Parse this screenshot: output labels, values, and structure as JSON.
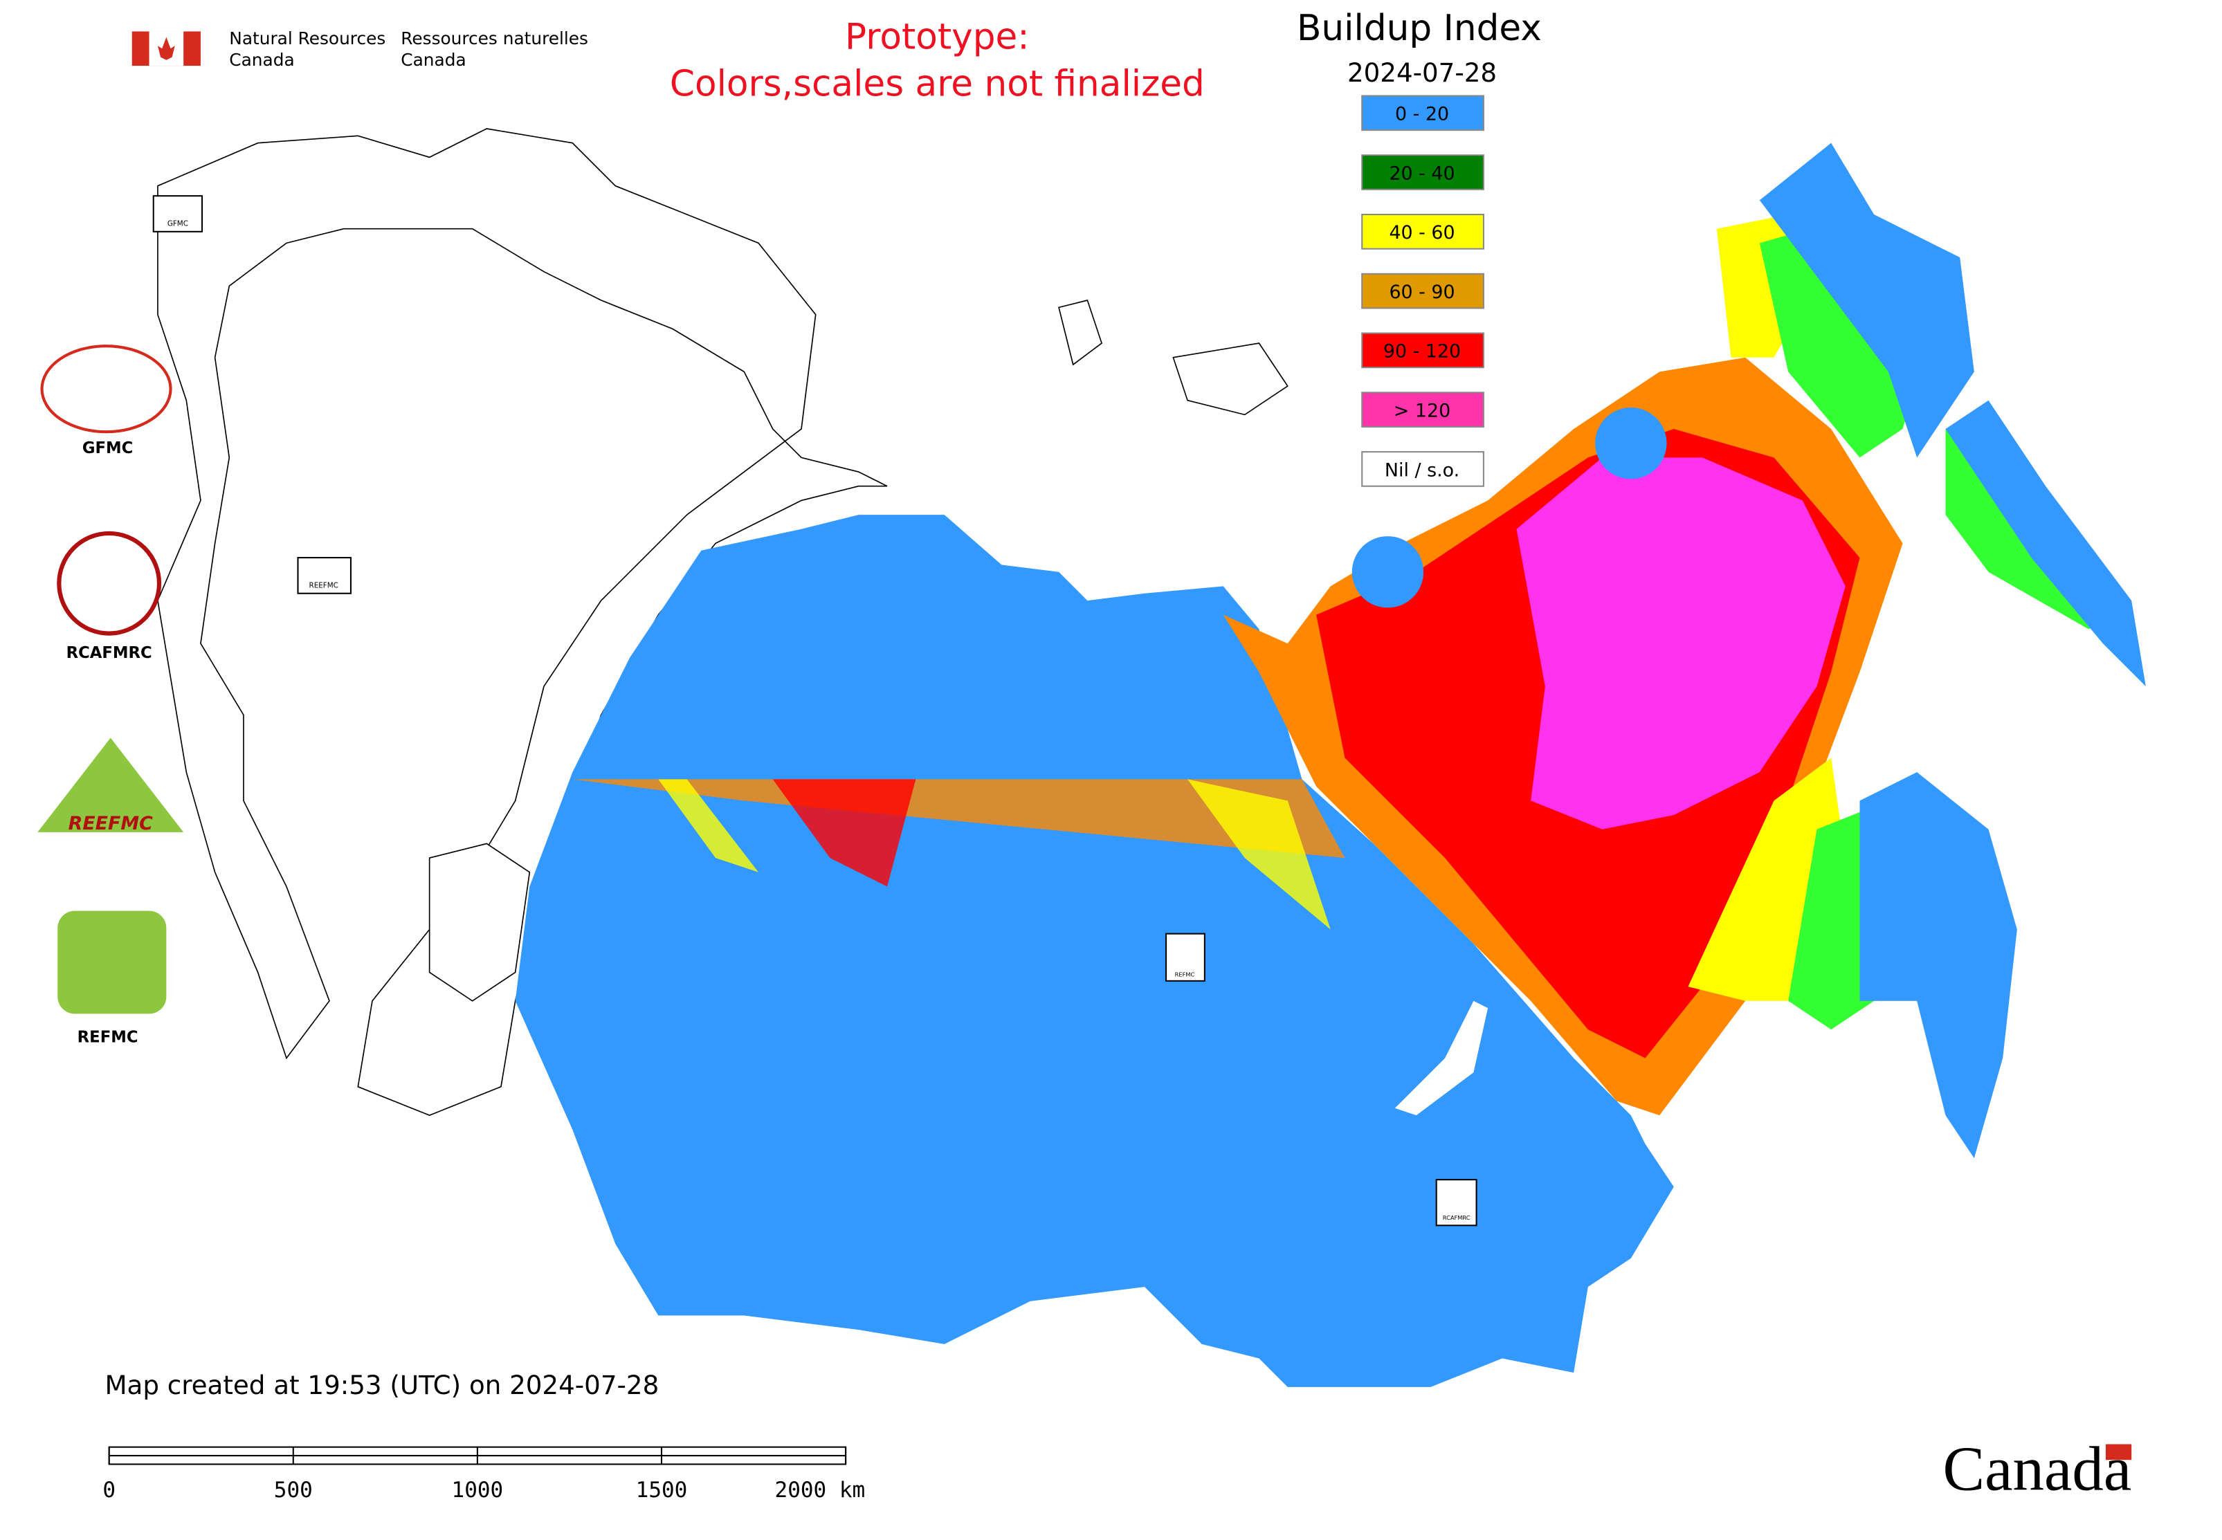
{
  "header": {
    "org_en": [
      "Natural Resources",
      "Canada"
    ],
    "org_fr": [
      "Ressources naturelles",
      "Canada"
    ],
    "notice": [
      "Prototype:",
      "Colors,scales are not finalized"
    ],
    "title": "Buildup Index",
    "date": "2024-07-28"
  },
  "legend": [
    {
      "label": "0 - 20",
      "color": "#3399ff"
    },
    {
      "label": "20 - 40",
      "color": "#008000"
    },
    {
      "label": "40 - 60",
      "color": "#ffff00"
    },
    {
      "label": "60 - 90",
      "color": "#e09a00"
    },
    {
      "label": "90 - 120",
      "color": "#ff0000"
    },
    {
      "label": "> 120",
      "color": "#ff33aa"
    },
    {
      "label": "Nil / s.o.",
      "color": "#ffffff"
    }
  ],
  "logos": [
    "GFMC",
    "RCAFMRC",
    "REEFMC",
    "REFMC"
  ],
  "map_markers": [
    "GFMC",
    "REEFMC",
    "REFMC",
    "RCAFMRC"
  ],
  "footer": {
    "created": "Map created at 19:53 (UTC) on 2024-07-28",
    "scale_labels": [
      "0",
      "500",
      "1000",
      "1500",
      "2000 km"
    ],
    "wordmark": "Canada"
  }
}
